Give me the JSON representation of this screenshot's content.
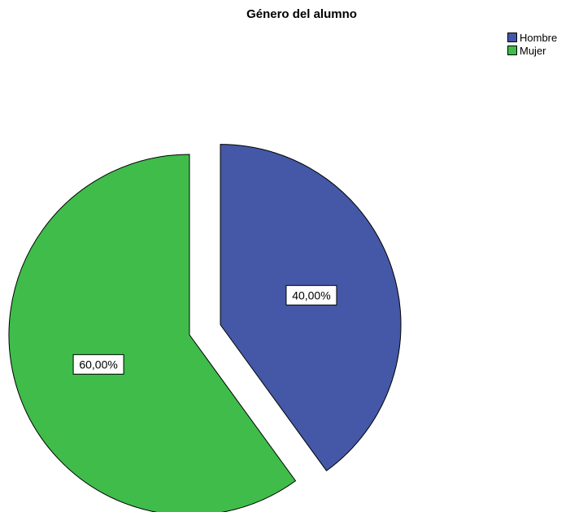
{
  "chart_data": {
    "type": "pie",
    "title": "Género del alumno",
    "slices": [
      {
        "name": "Hombre",
        "value": 40.0,
        "label": "40,00%",
        "color": "#4458a7",
        "exploded": true
      },
      {
        "name": "Mujer",
        "value": 60.0,
        "label": "60,00%",
        "color": "#3fbc4a",
        "exploded": false
      }
    ],
    "legend": {
      "position": "top-right",
      "entries": [
        "Hombre",
        "Mujer"
      ]
    }
  }
}
